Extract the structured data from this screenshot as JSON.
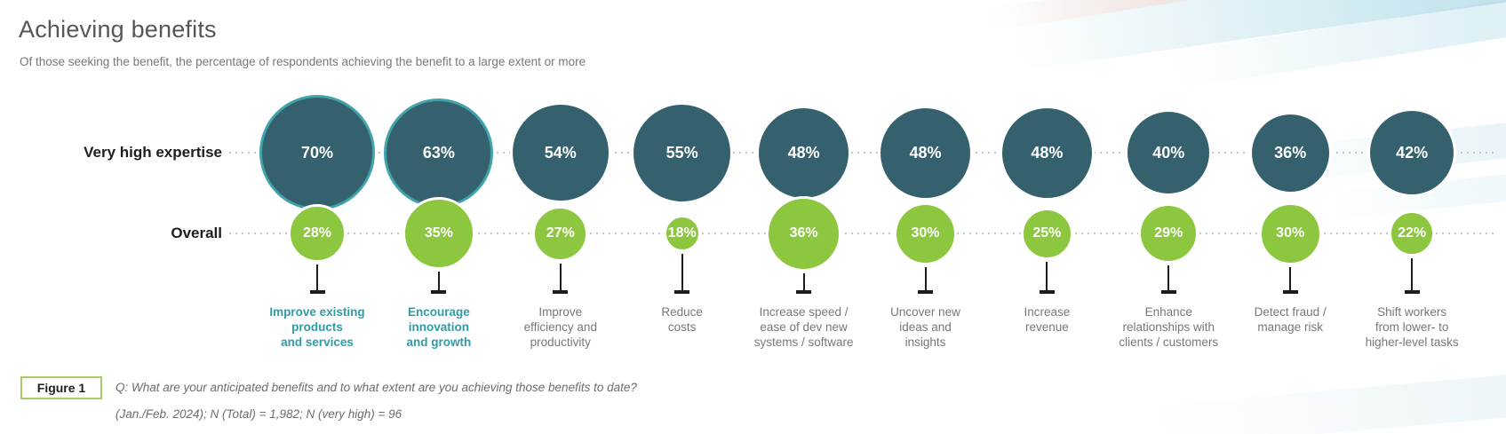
{
  "header": {
    "title": "Achieving benefits",
    "subtitle": "Of those seeking the benefit, the percentage of respondents achieving the benefit to a large extent or more"
  },
  "rows": {
    "top_label": "Very high expertise",
    "bottom_label": "Overall"
  },
  "figure": {
    "tag": "Figure 1",
    "caption_line1": "Q: What are your anticipated benefits and to what extent are you achieving those benefits to date?",
    "caption_line2": "(Jan./Feb. 2024); N (Total) = 1,982; N (very high) = 96"
  },
  "colors": {
    "dark_circle": "#34616D",
    "highlight_ring": "#41A3AA",
    "green_circle": "#8DC63F",
    "teal_label": "#2E9CA6",
    "gray_label": "#75787B",
    "figure_border": "#A5CE5F"
  },
  "chart_data": {
    "type": "bubble-comparison",
    "unit": "%",
    "categories": [
      "Improve existing\nproducts\nand services",
      "Encourage\ninnovation\nand growth",
      "Improve\nefficiency and\nproductivity",
      "Reduce\ncosts",
      "Increase speed /\nease of dev new\nsystems / software",
      "Uncover new\nideas and\ninsights",
      "Increase\nrevenue",
      "Enhance\nrelationships with\nclients / customers",
      "Detect fraud /\nmanage risk",
      "Shift workers\nfrom lower- to\nhigher-level tasks"
    ],
    "highlight": [
      true,
      true,
      false,
      false,
      false,
      false,
      false,
      false,
      false,
      false
    ],
    "series": [
      {
        "name": "Very high expertise",
        "values": [
          70,
          63,
          54,
          55,
          48,
          48,
          48,
          40,
          36,
          42
        ]
      },
      {
        "name": "Overall",
        "values": [
          28,
          35,
          27,
          18,
          36,
          30,
          25,
          29,
          30,
          22
        ]
      }
    ]
  }
}
